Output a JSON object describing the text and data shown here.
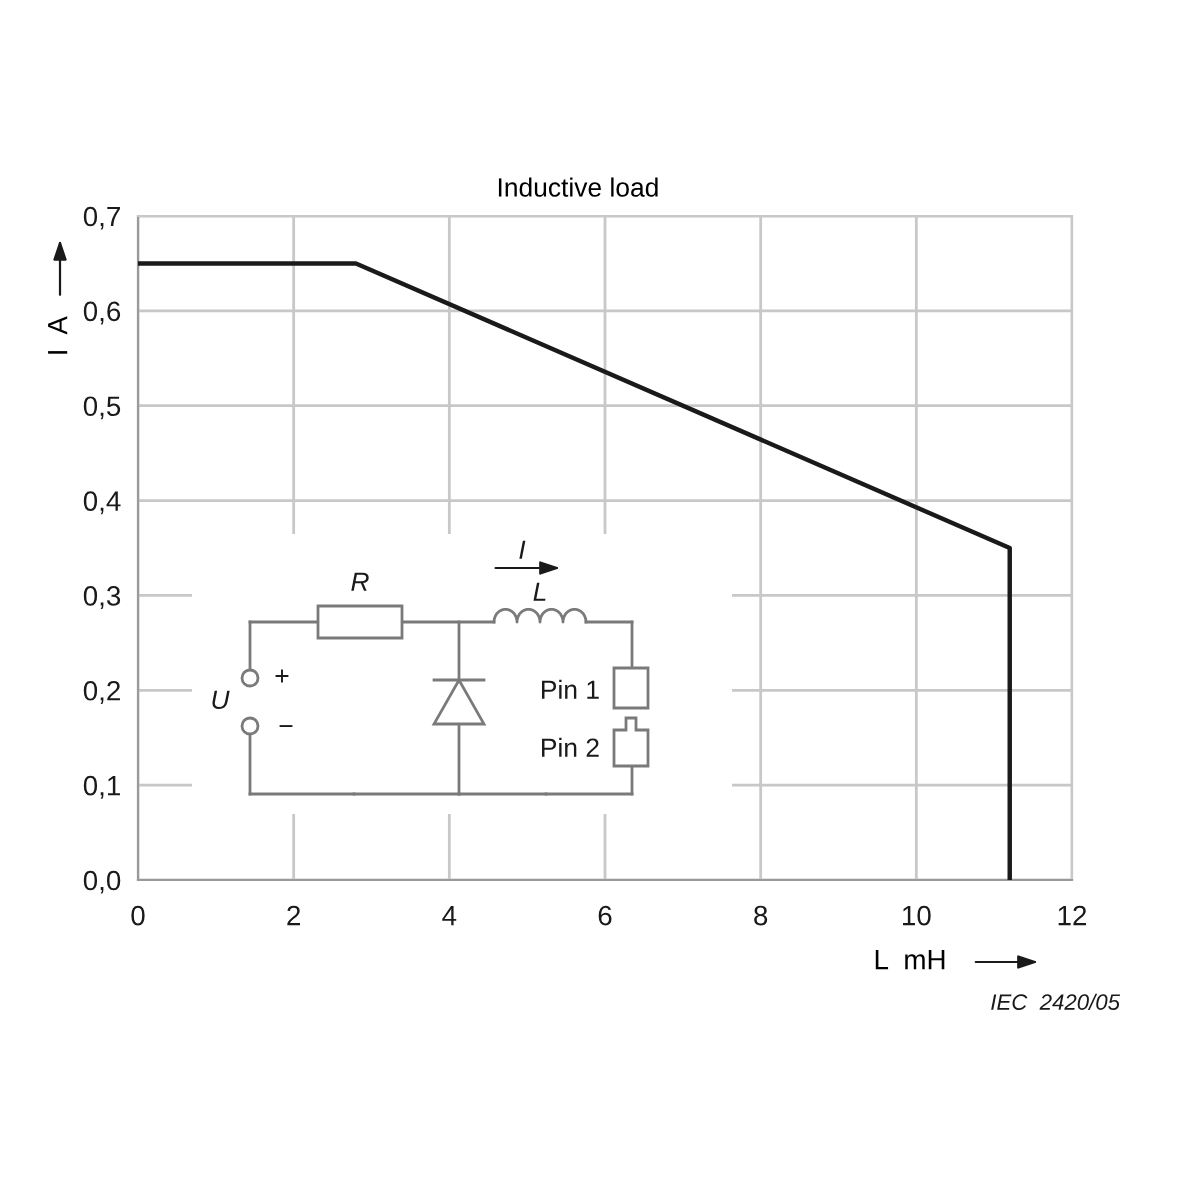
{
  "chart_data": {
    "type": "line",
    "title": "Inductive load",
    "xlabel": "L  mH",
    "ylabel": "I  A",
    "annotations": [
      "IEC  2420/05",
      "R",
      "I",
      "L",
      "U",
      "+",
      "−",
      "Pin 1",
      "Pin 2"
    ],
    "x": [
      0,
      2.8,
      11.2,
      11.2
    ],
    "values": [
      0.65,
      0.65,
      0.35,
      0
    ],
    "color": "#1a1a1a",
    "xlim": [
      0,
      12
    ],
    "ylim": [
      0,
      0.7
    ],
    "xticks": [
      0,
      2,
      4,
      6,
      8,
      10,
      12
    ],
    "yticks": [
      {
        "value": 0,
        "label": "0,0"
      },
      {
        "value": 0.1,
        "label": "0,1"
      },
      {
        "value": 0.2,
        "label": "0,2"
      },
      {
        "value": 0.3,
        "label": "0,3"
      },
      {
        "value": 0.4,
        "label": "0,4"
      },
      {
        "value": 0.5,
        "label": "0,5"
      },
      {
        "value": 0.6,
        "label": "0,6"
      },
      {
        "value": 0.7,
        "label": "0,7"
      }
    ],
    "grid": true,
    "marker": "none",
    "line_style": "solid"
  }
}
